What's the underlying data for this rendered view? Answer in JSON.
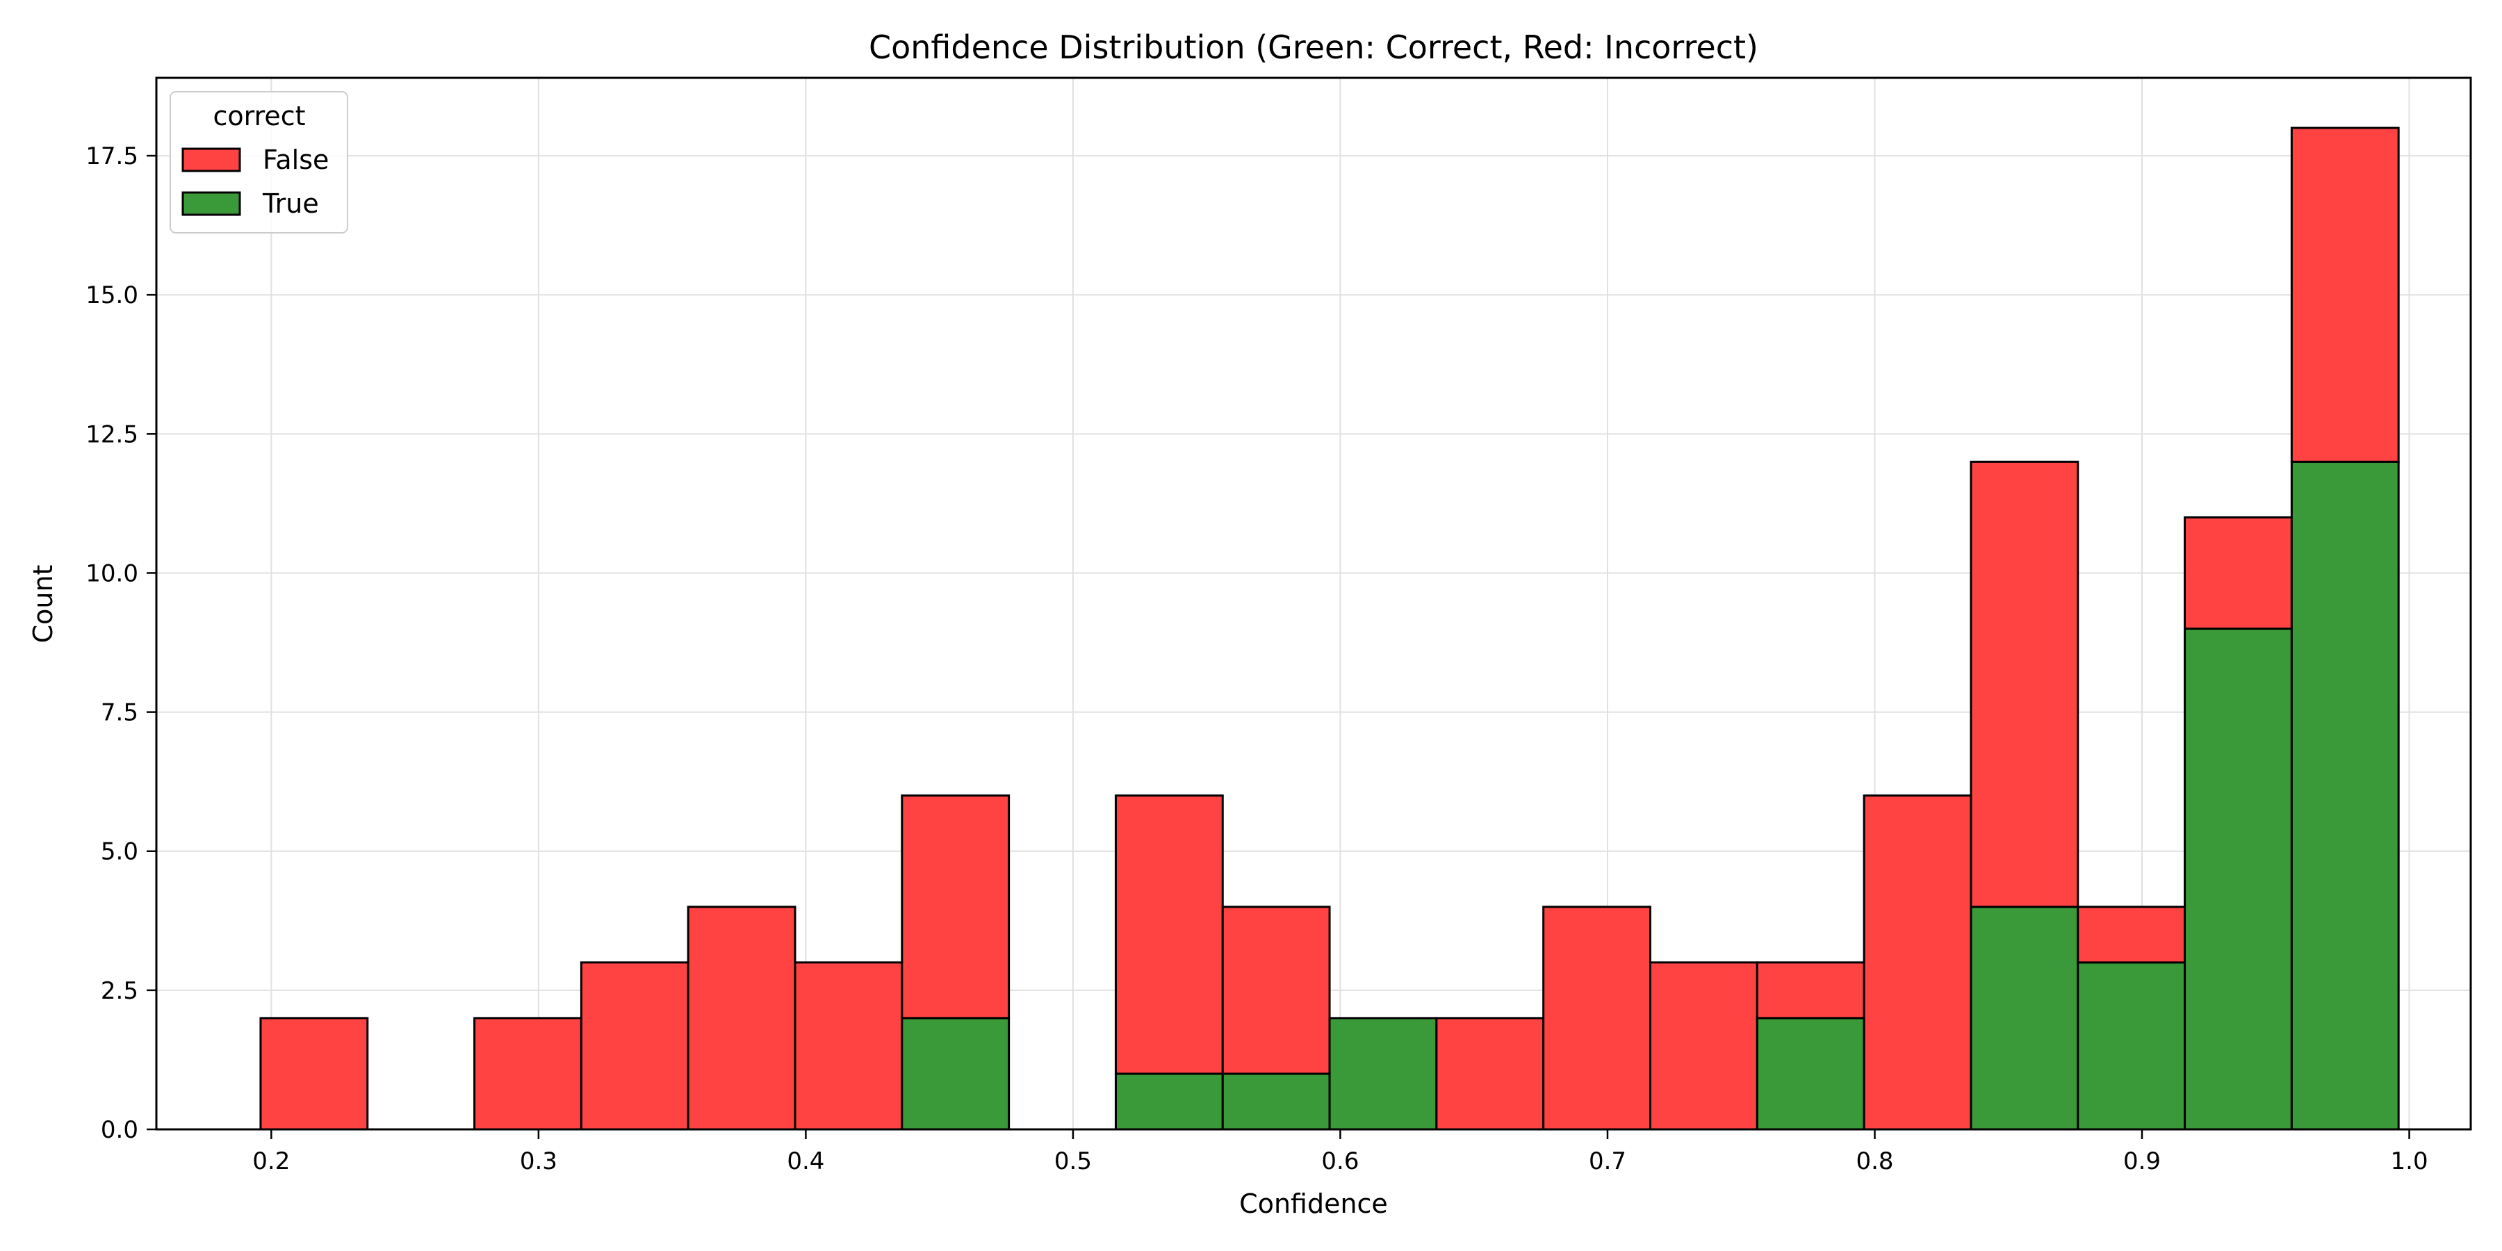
{
  "chart_data": {
    "type": "bar",
    "stacked": true,
    "title": "Confidence Distribution (Green: Correct, Red: Incorrect)",
    "xlabel": "Confidence",
    "ylabel": "Count",
    "xlim": [
      0.157,
      1.023
    ],
    "ylim": [
      0,
      18.9
    ],
    "grid": true,
    "legend_position": "top-left",
    "legend_title": "correct",
    "x_ticks": [
      "0.2",
      "0.3",
      "0.4",
      "0.5",
      "0.6",
      "0.7",
      "0.8",
      "0.9",
      "1.0"
    ],
    "y_ticks": [
      "0.0",
      "2.5",
      "5.0",
      "7.5",
      "10.0",
      "12.5",
      "15.0",
      "17.5"
    ],
    "bin_edges": [
      0.196,
      0.236,
      0.276,
      0.316,
      0.356,
      0.396,
      0.436,
      0.476,
      0.516,
      0.556,
      0.596,
      0.636,
      0.676,
      0.716,
      0.756,
      0.796,
      0.836,
      0.876,
      0.916,
      0.956,
      0.996
    ],
    "series": [
      {
        "name": "True",
        "color": "#3a9a3a",
        "values": [
          0,
          0,
          0,
          0,
          0,
          0,
          2,
          0,
          1,
          1,
          2,
          0,
          0,
          0,
          2,
          0,
          4,
          3,
          9,
          12
        ]
      },
      {
        "name": "False",
        "color": "#ff4242",
        "values": [
          2,
          0,
          2,
          3,
          4,
          3,
          4,
          0,
          5,
          3,
          0,
          2,
          4,
          3,
          1,
          6,
          8,
          1,
          2,
          6
        ]
      }
    ],
    "legend_order": [
      "False",
      "True"
    ]
  }
}
